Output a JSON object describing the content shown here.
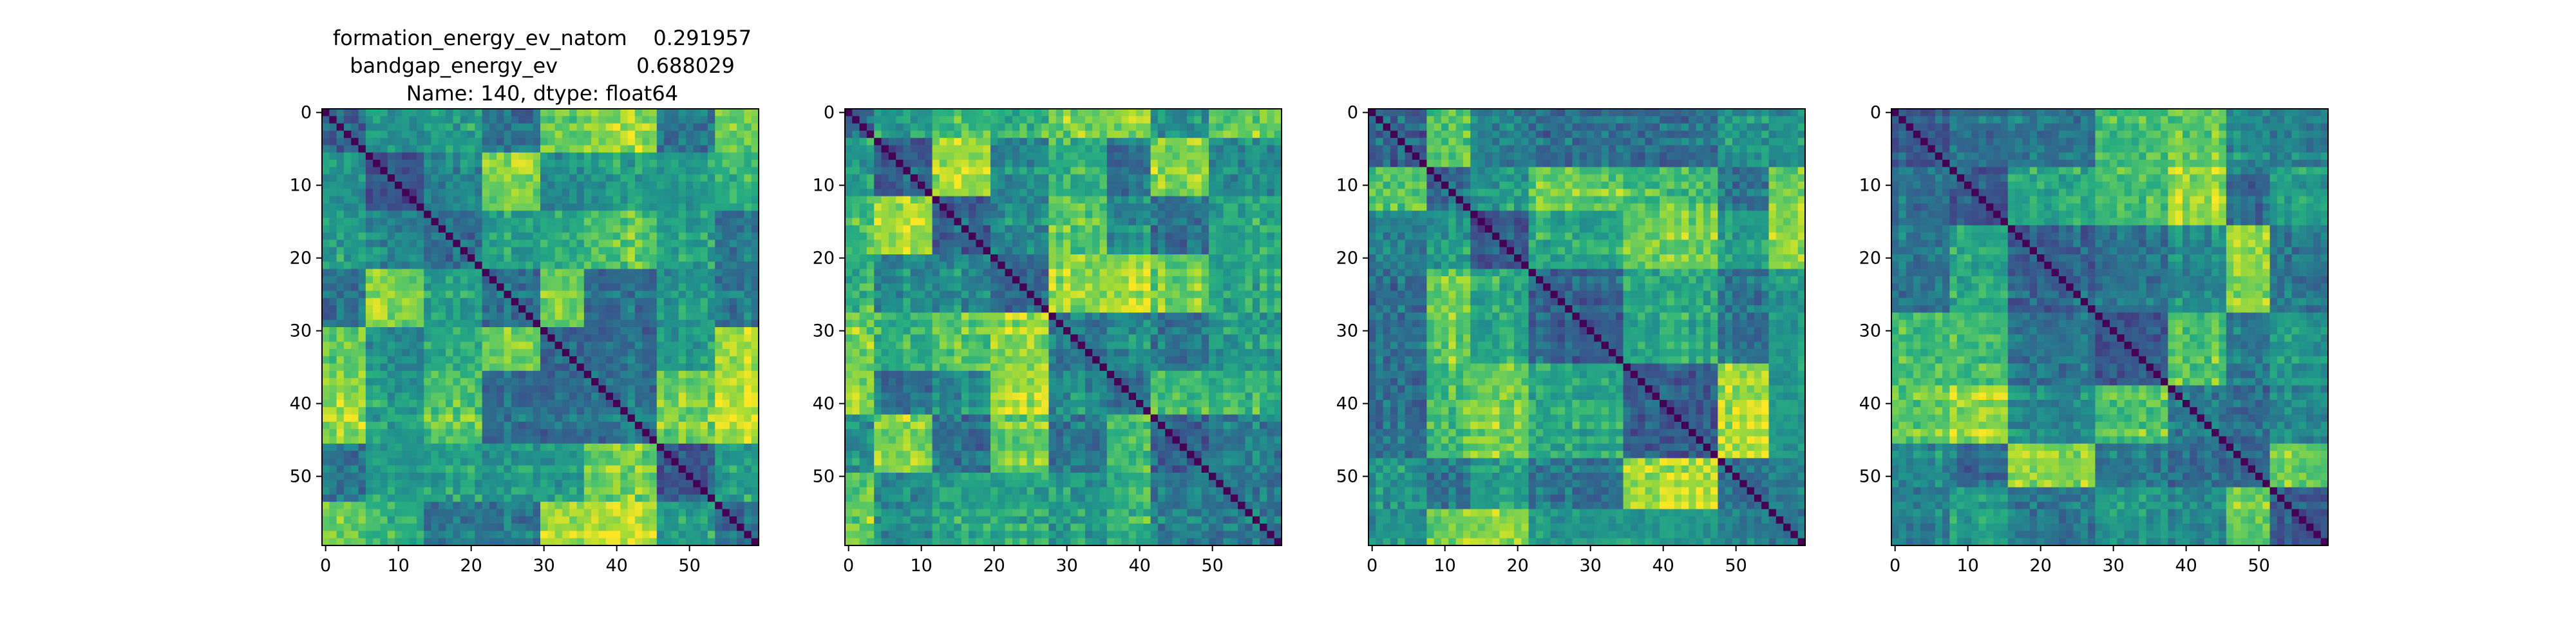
{
  "title_lines": [
    "formation_energy_ev_natom    0.291957",
    "bandgap_energy_ev            0.688029",
    "Name: 140, dtype: float64"
  ],
  "chart_data": [
    {
      "type": "heatmap",
      "colormap": "viridis",
      "size": 60,
      "x_ticks": [
        0,
        10,
        20,
        30,
        40,
        50
      ],
      "y_ticks": [
        0,
        10,
        20,
        30,
        40,
        50
      ],
      "xlim": [
        -0.5,
        59.5
      ],
      "ylim": [
        59.5,
        -0.5
      ],
      "diagonal": 0,
      "blocks": [
        0,
        6,
        14,
        22,
        30,
        36,
        46,
        54,
        60
      ],
      "seed": 11
    },
    {
      "type": "heatmap",
      "colormap": "viridis",
      "size": 60,
      "x_ticks": [
        0,
        10,
        20,
        30,
        40,
        50
      ],
      "y_ticks": [
        0,
        10,
        20,
        30,
        40,
        50
      ],
      "xlim": [
        -0.5,
        59.5
      ],
      "ylim": [
        59.5,
        -0.5
      ],
      "diagonal": 0,
      "blocks": [
        0,
        4,
        12,
        20,
        28,
        36,
        42,
        50,
        60
      ],
      "seed": 23
    },
    {
      "type": "heatmap",
      "colormap": "viridis",
      "size": 60,
      "x_ticks": [
        0,
        10,
        20,
        30,
        40,
        50
      ],
      "y_ticks": [
        0,
        10,
        20,
        30,
        40,
        50
      ],
      "xlim": [
        -0.5,
        59.5
      ],
      "ylim": [
        59.5,
        -0.5
      ],
      "diagonal": 0,
      "blocks": [
        0,
        8,
        14,
        22,
        35,
        48,
        55,
        60
      ],
      "seed": 37
    },
    {
      "type": "heatmap",
      "colormap": "viridis",
      "size": 60,
      "x_ticks": [
        0,
        10,
        20,
        30,
        40,
        50
      ],
      "y_ticks": [
        0,
        10,
        20,
        30,
        40,
        50
      ],
      "xlim": [
        -0.5,
        59.5
      ],
      "ylim": [
        59.5,
        -0.5
      ],
      "diagonal": 0,
      "blocks": [
        0,
        8,
        16,
        28,
        38,
        46,
        52,
        60
      ],
      "seed": 53
    }
  ]
}
